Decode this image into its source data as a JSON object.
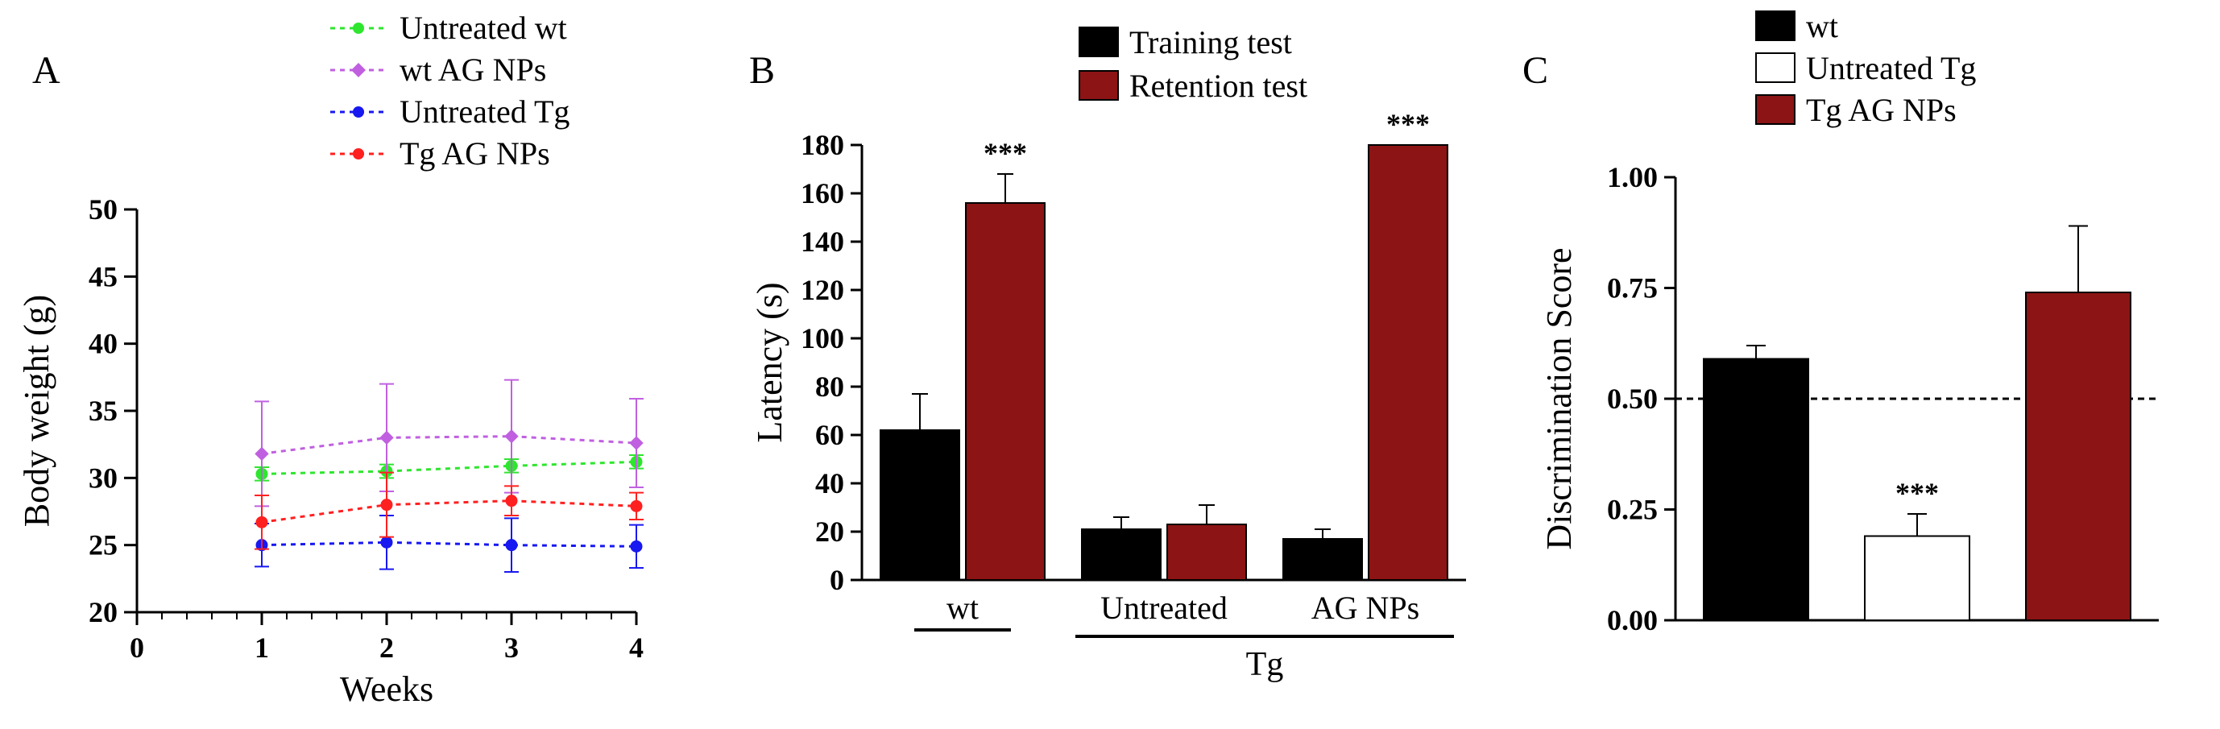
{
  "panel_labels": {
    "A": "A",
    "B": "B",
    "C": "C"
  },
  "label_fontsize": 48,
  "panelA": {
    "type": "line",
    "xlabel": "Weeks",
    "ylabel": "Body weight (g)",
    "label_fontsize": 44,
    "tick_fontsize": 36,
    "xlim": [
      0,
      4
    ],
    "ylim": [
      20,
      50
    ],
    "xtick_positions": [
      0,
      1,
      2,
      3,
      4
    ],
    "xtick_labels": [
      "0",
      "1",
      "2",
      "3",
      "4"
    ],
    "ytick_positions": [
      20,
      25,
      30,
      35,
      40,
      45,
      50
    ],
    "ytick_labels": [
      "20",
      "25",
      "30",
      "35",
      "40",
      "45",
      "50"
    ],
    "axis_color": "#000000",
    "axis_width": 3,
    "series": [
      {
        "name": "Untreated wt",
        "color": "#2ee62e",
        "x": [
          1,
          2,
          3,
          4
        ],
        "y": [
          30.3,
          30.5,
          30.9,
          31.2
        ],
        "err": [
          0.5,
          0.5,
          0.5,
          0.5
        ],
        "marker": "circle",
        "dash": "6,6",
        "lw": 3
      },
      {
        "name": "wt AG NPs",
        "color": "#c060e0",
        "x": [
          1,
          2,
          3,
          4
        ],
        "y": [
          31.8,
          33.0,
          33.1,
          32.6
        ],
        "err": [
          3.9,
          4.0,
          4.2,
          3.3
        ],
        "marker": "diamond",
        "dash": "6,6",
        "lw": 3
      },
      {
        "name": "Untreated Tg",
        "color": "#1818f0",
        "x": [
          1,
          2,
          3,
          4
        ],
        "y": [
          25.0,
          25.2,
          25.0,
          24.9
        ],
        "err": [
          1.6,
          2.0,
          2.0,
          1.6
        ],
        "marker": "circle",
        "dash": "6,6",
        "lw": 3
      },
      {
        "name": "Tg AG NPs",
        "color": "#ff2020",
        "x": [
          1,
          2,
          3,
          4
        ],
        "y": [
          26.7,
          28.0,
          28.3,
          27.9
        ],
        "err": [
          2.0,
          2.4,
          1.1,
          1.0
        ],
        "marker": "circle",
        "dash": "6,6",
        "lw": 3
      }
    ],
    "legend": {
      "items": [
        "Untreated wt",
        "wt AG NPs",
        "Untreated Tg",
        "Tg AG NPs"
      ],
      "colors": [
        "#2ee62e",
        "#c060e0",
        "#1818f0",
        "#ff2020"
      ],
      "markers": [
        "circle",
        "diamond",
        "circle",
        "circle"
      ],
      "fontsize": 40
    }
  },
  "panelB": {
    "type": "bar",
    "xlabel_groups": [
      "wt",
      "Untreated",
      "AG NPs"
    ],
    "xlabel_super": "Tg",
    "ylabel": "Latency (s)",
    "label_fontsize": 44,
    "tick_fontsize": 36,
    "ylim": [
      0,
      180
    ],
    "ytick_step": 20,
    "ytick_positions": [
      0,
      20,
      40,
      60,
      80,
      100,
      120,
      140,
      160,
      180
    ],
    "legend_items": [
      "Training test",
      "Retention test"
    ],
    "legend_colors": [
      "#000000",
      "#8c1414"
    ],
    "legend_fontsize": 40,
    "bar_border_color": "#000000",
    "bar_border_width": 2,
    "groups": [
      {
        "label": "wt",
        "training": {
          "val": 62,
          "err": 15
        },
        "retention": {
          "val": 156,
          "err": 12,
          "sig": "***"
        }
      },
      {
        "label": "Untreated",
        "training": {
          "val": 21,
          "err": 5
        },
        "retention": {
          "val": 23,
          "err": 8
        }
      },
      {
        "label": "AG NPs",
        "training": {
          "val": 17,
          "err": 4
        },
        "retention": {
          "val": 180,
          "err": 0,
          "sig": "***"
        }
      }
    ],
    "sig_text": "***",
    "sig_fontsize": 36,
    "axis_color": "#000000",
    "axis_width": 3,
    "annot_line_wt": {
      "under": "wt"
    },
    "annot_line_tg": {
      "spans": [
        "Untreated",
        "AG NPs"
      ],
      "label": "Tg"
    }
  },
  "panelC": {
    "type": "bar",
    "ylabel": "Discrimination Score",
    "label_fontsize": 44,
    "tick_fontsize": 36,
    "ylim": [
      0.0,
      1.0
    ],
    "ytick_positions": [
      0.0,
      0.25,
      0.5,
      0.75,
      1.0
    ],
    "ytick_labels": [
      "0.00",
      "0.25",
      "0.50",
      "0.75",
      "1.00"
    ],
    "legend_items": [
      "wt",
      "Untreated Tg",
      "Tg AG NPs"
    ],
    "legend_colors": [
      "#000000",
      "#ffffff",
      "#8c1414"
    ],
    "legend_fontsize": 40,
    "bar_border_color": "#000000",
    "bar_border_width": 2,
    "bars": [
      {
        "label": "wt",
        "val": 0.59,
        "err": 0.03,
        "fill": "#000000"
      },
      {
        "label": "Untreated Tg",
        "val": 0.19,
        "err": 0.05,
        "fill": "#ffffff",
        "sig": "***"
      },
      {
        "label": "Tg AG NPs",
        "val": 0.74,
        "err": 0.15,
        "fill": "#8c1414"
      }
    ],
    "ref_line": {
      "y": 0.5,
      "dash": "8,6",
      "color": "#000000",
      "width": 3
    },
    "sig_text": "***",
    "sig_fontsize": 36,
    "axis_color": "#000000",
    "axis_width": 3
  }
}
